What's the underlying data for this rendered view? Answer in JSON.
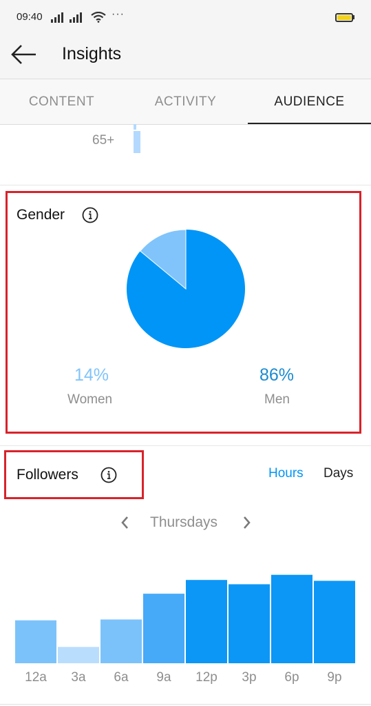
{
  "status_bar": {
    "time": "09:40",
    "more_indicator": "···",
    "icons": [
      "signal-icon",
      "signal-icon",
      "wifi-icon",
      "battery-icon"
    ]
  },
  "header": {
    "title": "Insights",
    "back_icon": "arrow-left-icon"
  },
  "tabs": [
    {
      "label": "CONTENT",
      "active": false
    },
    {
      "label": "ACTIVITY",
      "active": false
    },
    {
      "label": "AUDIENCE",
      "active": true
    }
  ],
  "age_range": {
    "label": "65+"
  },
  "gender": {
    "title": "Gender",
    "info_icon": "info-icon",
    "women": {
      "percent": "14%",
      "label": "Women",
      "value": 14,
      "color": "#80c4fb"
    },
    "men": {
      "percent": "86%",
      "label": "Men",
      "value": 86,
      "color": "#0095f6"
    }
  },
  "followers": {
    "title": "Followers",
    "info_icon": "info-icon",
    "toggle": {
      "hours": "Hours",
      "days": "Days",
      "selected": "Hours"
    },
    "day_selector": {
      "label": "Thursdays",
      "prev_icon": "chevron-left-icon",
      "next_icon": "chevron-right-icon"
    }
  },
  "colors": {
    "accent": "#0095f6",
    "highlight": "#d9222a",
    "muted_text": "#8e8e8e"
  },
  "chart_data": {
    "type": "bar",
    "categories": [
      "12a",
      "3a",
      "6a",
      "9a",
      "12p",
      "3p",
      "6p",
      "9p"
    ],
    "values": [
      50,
      19,
      51,
      81,
      97,
      92,
      103,
      96
    ],
    "bar_colors": [
      "#7cc2fa",
      "#b9defd",
      "#7cc2fa",
      "#46aaf9",
      "#0c97f6",
      "#0c97f6",
      "#0c97f6",
      "#0c97f6"
    ],
    "title": "",
    "xlabel": "",
    "ylabel": "",
    "ylim": [
      0,
      110
    ]
  }
}
